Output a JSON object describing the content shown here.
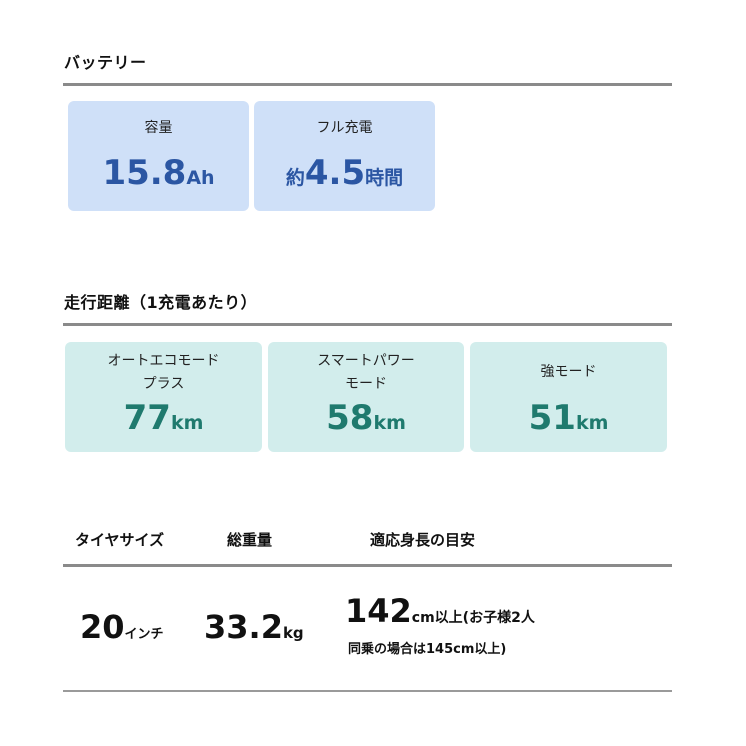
{
  "battery": {
    "heading": "バッテリー",
    "cards": [
      {
        "label": "容量",
        "prefix": "",
        "value": "15.8",
        "unit": "Ah"
      },
      {
        "label": "フル充電",
        "prefix": "約",
        "value": "4.5",
        "unit": "時間"
      }
    ],
    "color_bg": "#cfe0f8",
    "color_text": "#2b56a3"
  },
  "range": {
    "heading": "走行距離（1充電あたり）",
    "cards": [
      {
        "label_line1": "オートエコモード",
        "label_line2": "プラス",
        "value": "77",
        "unit": "km"
      },
      {
        "label_line1": "スマートパワー",
        "label_line2": "モード",
        "value": "58",
        "unit": "km"
      },
      {
        "label_line1": "強モード",
        "label_line2": "",
        "value": "51",
        "unit": "km"
      }
    ],
    "color_bg": "#d2edec",
    "color_text": "#1f7a6e"
  },
  "specs": {
    "columns": [
      "タイヤサイズ",
      "総重量",
      "適応身長の目安"
    ],
    "tire": {
      "value": "20",
      "unit": "インチ"
    },
    "weight": {
      "value": "33.2",
      "unit": "kg"
    },
    "height": {
      "value": "142",
      "unit": "cm以上(お子様2人",
      "line2": "同乗の場合は145cm以上)"
    }
  }
}
